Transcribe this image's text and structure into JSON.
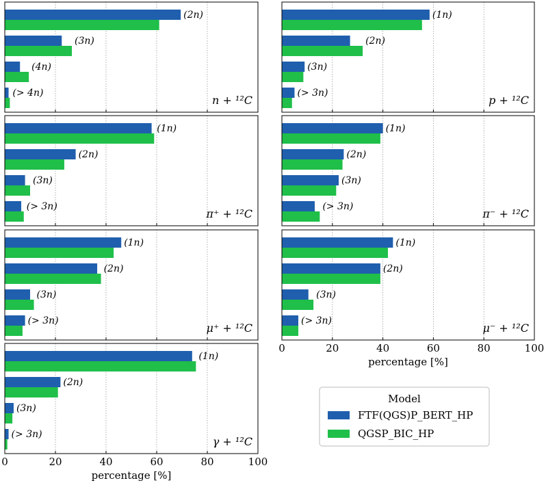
{
  "chart_data": {
    "type": "bar",
    "orientation": "horizontal",
    "xlabel": "percentage [%]",
    "xlim": [
      0,
      100
    ],
    "xticks": [
      0,
      20,
      40,
      60,
      80,
      100
    ],
    "grid": "vertical dotted",
    "series": [
      {
        "name": "FTF(QGS)P_BERT_HP",
        "color": "#1f5fae"
      },
      {
        "name": "QGSP_BIC_HP",
        "color": "#1fbf4a"
      }
    ],
    "panels": [
      {
        "process": "n + ¹²C",
        "categories": [
          "(2n)",
          "(3n)",
          "(4n)",
          "(> 4n)"
        ],
        "values": [
          [
            69.5,
            61.0
          ],
          [
            22.5,
            26.5
          ],
          [
            6.0,
            9.5
          ],
          [
            1.5,
            2.0
          ]
        ]
      },
      {
        "process": "p + ¹²C",
        "categories": [
          "(1n)",
          "(2n)",
          "(3n)",
          "(> 3n)"
        ],
        "values": [
          [
            58.5,
            55.5
          ],
          [
            27.0,
            32.0
          ],
          [
            9.0,
            8.5
          ],
          [
            5.0,
            4.0
          ]
        ]
      },
      {
        "process": "π⁺ + ¹²C",
        "categories": [
          "(1n)",
          "(2n)",
          "(3n)",
          "(> 3n)"
        ],
        "values": [
          [
            58.0,
            59.0
          ],
          [
            28.0,
            23.5
          ],
          [
            8.0,
            10.0
          ],
          [
            6.5,
            7.5
          ]
        ]
      },
      {
        "process": "π⁻ + ¹²C",
        "categories": [
          "(1n)",
          "(2n)",
          "(3n)",
          "(> 3n)"
        ],
        "values": [
          [
            40.0,
            39.0
          ],
          [
            24.5,
            24.0
          ],
          [
            22.5,
            21.5
          ],
          [
            13.0,
            15.0
          ]
        ]
      },
      {
        "process": "μ⁺ + ¹²C",
        "categories": [
          "(1n)",
          "(2n)",
          "(3n)",
          "(> 3n)"
        ],
        "values": [
          [
            46.0,
            43.0
          ],
          [
            36.5,
            38.0
          ],
          [
            10.0,
            11.5
          ],
          [
            8.0,
            7.0
          ]
        ]
      },
      {
        "process": "μ⁻ + ¹²C",
        "categories": [
          "(1n)",
          "(2n)",
          "(3n)",
          "(> 3n)"
        ],
        "values": [
          [
            44.0,
            42.0
          ],
          [
            39.0,
            39.0
          ],
          [
            10.5,
            12.5
          ],
          [
            6.5,
            6.5
          ]
        ]
      },
      {
        "process": "γ + ¹²C",
        "categories": [
          "(1n)",
          "(2n)",
          "(3n)",
          "(> 3n)"
        ],
        "values": [
          [
            74.0,
            75.5
          ],
          [
            22.0,
            21.0
          ],
          [
            3.5,
            3.0
          ],
          [
            1.5,
            1.0
          ]
        ]
      }
    ],
    "legend": {
      "title": "Model",
      "placement": "lower-right"
    }
  }
}
